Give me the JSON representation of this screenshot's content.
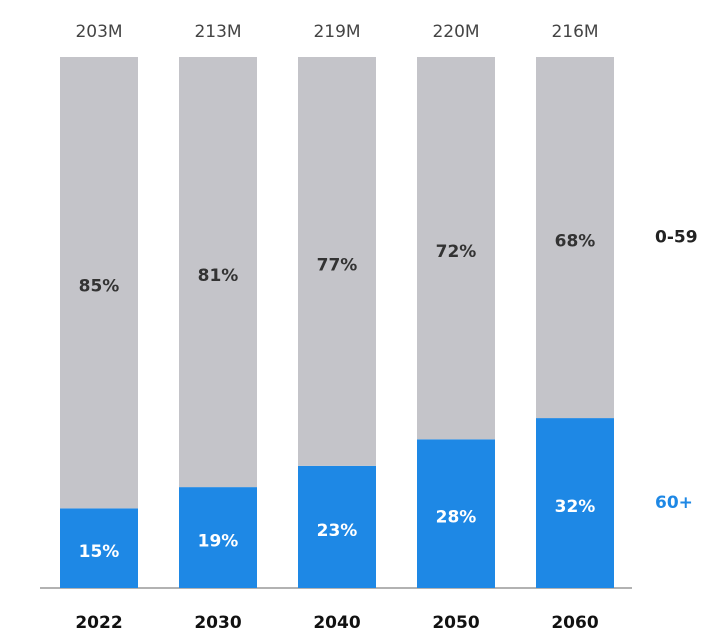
{
  "chart_data": {
    "type": "stacked_bar",
    "categories": [
      "2022",
      "2030",
      "2040",
      "2050",
      "2060"
    ],
    "series": [
      {
        "name": "60+",
        "color": "#1e88e5",
        "values": [
          15,
          19,
          23,
          28,
          32
        ],
        "value_labels": [
          "15%",
          "19%",
          "23%",
          "28%",
          "32%"
        ]
      },
      {
        "name": "0-59",
        "color": "#c4c4c9",
        "values": [
          85,
          81,
          77,
          72,
          68
        ],
        "value_labels": [
          "85%",
          "81%",
          "77%",
          "72%",
          "68%"
        ]
      }
    ],
    "totals": {
      "values": [
        203,
        213,
        219,
        220,
        216
      ],
      "value_labels": [
        "203M",
        "213M",
        "219M",
        "220M",
        "216M"
      ]
    },
    "ylim": [
      0,
      100
    ]
  }
}
